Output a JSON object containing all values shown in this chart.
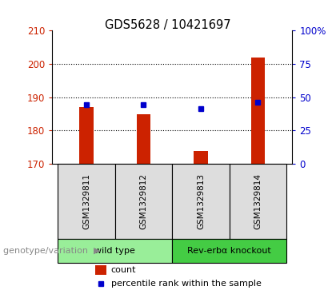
{
  "title": "GDS5628 / 10421697",
  "samples": [
    "GSM1329811",
    "GSM1329812",
    "GSM1329813",
    "GSM1329814"
  ],
  "count_values": [
    187.0,
    184.8,
    173.8,
    201.8
  ],
  "percentile_values": [
    44.5,
    44.5,
    41.5,
    46.0
  ],
  "ylim_left": [
    170,
    210
  ],
  "ylim_right": [
    0,
    100
  ],
  "yticks_left": [
    170,
    180,
    190,
    200,
    210
  ],
  "yticks_right": [
    0,
    25,
    50,
    75,
    100
  ],
  "ytick_labels_right": [
    "0",
    "25",
    "50",
    "75",
    "100%"
  ],
  "bar_bottom": 170,
  "bar_color": "#cc2200",
  "dot_color": "#0000cc",
  "groups": [
    {
      "label": "wild type",
      "indices": [
        0,
        1
      ],
      "color": "#99ee99"
    },
    {
      "label": "Rev-erbα knockout",
      "indices": [
        2,
        3
      ],
      "color": "#44cc44"
    }
  ],
  "group_label": "genotype/variation",
  "legend_items": [
    {
      "color": "#cc2200",
      "label": "count"
    },
    {
      "color": "#0000cc",
      "label": "percentile rank within the sample"
    }
  ],
  "bar_width": 0.25,
  "x_positions": [
    0,
    1,
    2,
    3
  ],
  "grid_yticks": [
    180,
    190,
    200
  ]
}
